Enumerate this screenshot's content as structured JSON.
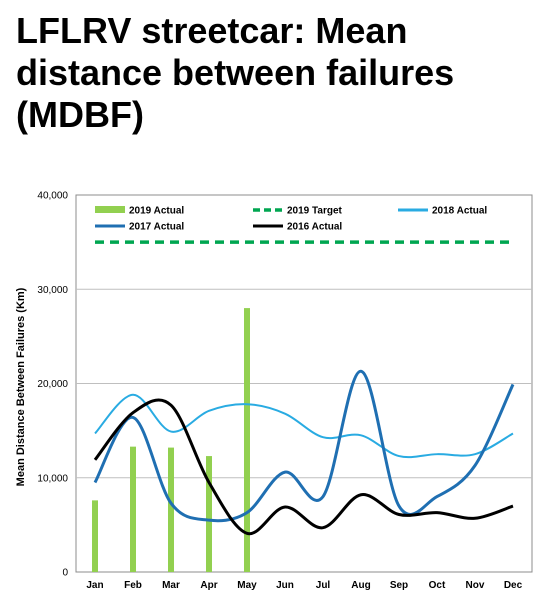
{
  "title": "LFLRV streetcar: Mean distance between failures (MDBF)",
  "chart_data": {
    "type": "bar",
    "categories": [
      "Jan",
      "Feb",
      "Mar",
      "Apr",
      "May",
      "Jun",
      "Jul",
      "Aug",
      "Sep",
      "Oct",
      "Nov",
      "Dec"
    ],
    "ylabel": "Mean Distance Between Failures (Km)",
    "ylim": [
      0,
      40000
    ],
    "yticks": [
      "0",
      "10,000",
      "20,000",
      "30,000",
      "40,000"
    ],
    "ytick_values": [
      0,
      10000,
      20000,
      30000,
      40000
    ],
    "grid": true,
    "legend_placement": "top",
    "series": [
      {
        "name": "2019 Actual",
        "kind": "bar",
        "color": "#92d050",
        "values": [
          7600,
          13300,
          13200,
          12300,
          28000,
          null,
          null,
          null,
          null,
          null,
          null,
          null
        ]
      },
      {
        "name": "2019 Target",
        "kind": "dashed-line",
        "color": "#00a651",
        "values": [
          35000,
          35000,
          35000,
          35000,
          35000,
          35000,
          35000,
          35000,
          35000,
          35000,
          35000,
          35000
        ]
      },
      {
        "name": "2018 Actual",
        "kind": "line",
        "color": "#29abe2",
        "values": [
          14700,
          18800,
          14900,
          17100,
          17800,
          16800,
          14300,
          14500,
          12300,
          12500,
          12500,
          14700
        ]
      },
      {
        "name": "2017 Actual",
        "kind": "line",
        "color": "#1f6fb2",
        "values": [
          9500,
          16400,
          7300,
          5500,
          6300,
          10600,
          8000,
          21300,
          7000,
          8000,
          11300,
          19900
        ]
      },
      {
        "name": "2016 Actual",
        "kind": "line",
        "color": "#000000",
        "values": [
          11900,
          16900,
          17700,
          9500,
          4100,
          6900,
          4700,
          8200,
          6100,
          6300,
          5700,
          7000
        ]
      }
    ]
  }
}
